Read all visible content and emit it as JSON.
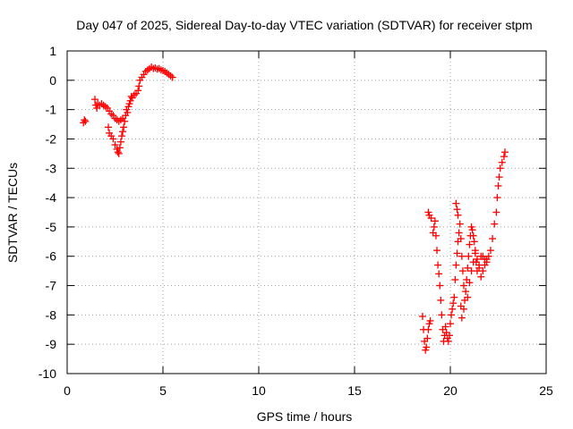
{
  "chart_data": {
    "type": "scatter",
    "title": "Day 047 of 2025, Sidereal Day-to-day VTEC variation (SDTVAR) for receiver stpm",
    "xlabel": "GPS time / hours",
    "ylabel": "SDTVAR / TECUs",
    "xlim": [
      0,
      25
    ],
    "ylim": [
      -10,
      1
    ],
    "xticks": [
      0,
      5,
      10,
      15,
      20,
      25
    ],
    "yticks": [
      1,
      0,
      -1,
      -2,
      -3,
      -4,
      -5,
      -6,
      -7,
      -8,
      -9,
      -10
    ],
    "xtick_labels": [
      "0",
      "5",
      "10",
      "15",
      "20",
      "25"
    ],
    "ytick_labels": [
      "1",
      "0",
      "-1",
      "-2",
      "-3",
      "-4",
      "-5",
      "-6",
      "-7",
      "-8",
      "-9",
      "-10"
    ],
    "grid": true,
    "marker": "plus",
    "color": "#ff0000",
    "series": [
      {
        "name": "SDTVAR",
        "points": [
          [
            0.85,
            -1.45
          ],
          [
            0.9,
            -1.35
          ],
          [
            0.95,
            -1.4
          ],
          [
            1.45,
            -0.65
          ],
          [
            1.5,
            -0.85
          ],
          [
            1.55,
            -0.95
          ],
          [
            1.6,
            -0.8
          ],
          [
            1.7,
            -0.85
          ],
          [
            1.8,
            -0.8
          ],
          [
            1.9,
            -0.85
          ],
          [
            2.0,
            -0.9
          ],
          [
            2.1,
            -0.95
          ],
          [
            2.2,
            -1.05
          ],
          [
            2.3,
            -1.15
          ],
          [
            2.4,
            -1.2
          ],
          [
            2.5,
            -1.3
          ],
          [
            2.6,
            -1.35
          ],
          [
            2.7,
            -1.4
          ],
          [
            2.8,
            -1.35
          ],
          [
            2.9,
            -1.3
          ],
          [
            2.15,
            -1.6
          ],
          [
            2.2,
            -1.8
          ],
          [
            2.3,
            -1.9
          ],
          [
            2.4,
            -2.0
          ],
          [
            2.5,
            -2.2
          ],
          [
            2.6,
            -2.35
          ],
          [
            2.65,
            -2.45
          ],
          [
            2.7,
            -2.5
          ],
          [
            2.75,
            -2.3
          ],
          [
            2.8,
            -2.1
          ],
          [
            2.85,
            -1.9
          ],
          [
            2.9,
            -1.75
          ],
          [
            2.95,
            -1.6
          ],
          [
            3.0,
            -1.4
          ],
          [
            3.05,
            -1.2
          ],
          [
            3.1,
            -1.0
          ],
          [
            3.15,
            -1.1
          ],
          [
            3.2,
            -0.9
          ],
          [
            3.25,
            -0.8
          ],
          [
            3.3,
            -0.7
          ],
          [
            3.35,
            -0.55
          ],
          [
            3.4,
            -0.6
          ],
          [
            3.5,
            -0.5
          ],
          [
            3.6,
            -0.45
          ],
          [
            3.7,
            -0.35
          ],
          [
            3.75,
            -0.2
          ],
          [
            3.8,
            0.0
          ],
          [
            3.9,
            0.1
          ],
          [
            4.0,
            0.2
          ],
          [
            4.1,
            0.3
          ],
          [
            4.2,
            0.35
          ],
          [
            4.3,
            0.4
          ],
          [
            4.4,
            0.45
          ],
          [
            4.5,
            0.4
          ],
          [
            4.6,
            0.42
          ],
          [
            4.7,
            0.38
          ],
          [
            4.8,
            0.4
          ],
          [
            4.9,
            0.35
          ],
          [
            5.0,
            0.33
          ],
          [
            5.1,
            0.3
          ],
          [
            5.2,
            0.25
          ],
          [
            5.3,
            0.2
          ],
          [
            5.4,
            0.15
          ],
          [
            5.5,
            0.1
          ],
          [
            18.55,
            -8.05
          ],
          [
            18.6,
            -8.5
          ],
          [
            18.65,
            -8.9
          ],
          [
            18.7,
            -9.2
          ],
          [
            18.75,
            -9.1
          ],
          [
            18.8,
            -8.8
          ],
          [
            18.85,
            -8.5
          ],
          [
            18.9,
            -8.3
          ],
          [
            18.95,
            -8.2
          ],
          [
            18.85,
            -4.5
          ],
          [
            18.9,
            -4.6
          ],
          [
            19.0,
            -4.7
          ],
          [
            19.1,
            -5.2
          ],
          [
            19.15,
            -5.0
          ],
          [
            19.2,
            -4.8
          ],
          [
            19.25,
            -5.3
          ],
          [
            19.3,
            -5.8
          ],
          [
            19.35,
            -6.3
          ],
          [
            19.4,
            -6.6
          ],
          [
            19.45,
            -7.0
          ],
          [
            19.5,
            -7.5
          ],
          [
            19.55,
            -8.0
          ],
          [
            19.6,
            -8.5
          ],
          [
            19.65,
            -8.9
          ],
          [
            19.7,
            -8.7
          ],
          [
            19.75,
            -8.4
          ],
          [
            19.8,
            -8.6
          ],
          [
            19.85,
            -8.8
          ],
          [
            19.9,
            -8.9
          ],
          [
            19.95,
            -8.7
          ],
          [
            20.0,
            -8.3
          ],
          [
            20.05,
            -8.0
          ],
          [
            20.1,
            -7.8
          ],
          [
            20.15,
            -7.6
          ],
          [
            20.2,
            -7.4
          ],
          [
            20.25,
            -6.8
          ],
          [
            20.3,
            -6.3
          ],
          [
            20.35,
            -5.9
          ],
          [
            20.4,
            -5.5
          ],
          [
            20.45,
            -5.2
          ],
          [
            20.5,
            -4.9
          ],
          [
            20.55,
            -5.4
          ],
          [
            20.6,
            -6.0
          ],
          [
            20.65,
            -6.5
          ],
          [
            20.7,
            -7.0
          ],
          [
            20.75,
            -7.5
          ],
          [
            20.8,
            -7.2
          ],
          [
            20.85,
            -6.8
          ],
          [
            20.9,
            -6.4
          ],
          [
            20.95,
            -6.0
          ],
          [
            21.0,
            -5.6
          ],
          [
            21.05,
            -5.3
          ],
          [
            21.1,
            -5.0
          ],
          [
            21.15,
            -5.1
          ],
          [
            21.2,
            -5.3
          ],
          [
            21.25,
            -5.5
          ],
          [
            21.3,
            -5.8
          ],
          [
            21.35,
            -6.2
          ],
          [
            21.4,
            -6.5
          ],
          [
            21.5,
            -6.3
          ],
          [
            21.6,
            -6.0
          ],
          [
            21.7,
            -6.0
          ],
          [
            21.8,
            -6.1
          ],
          [
            21.9,
            -6.2
          ],
          [
            22.0,
            -6.0
          ],
          [
            22.1,
            -5.8
          ],
          [
            22.2,
            -5.4
          ],
          [
            22.3,
            -4.9
          ],
          [
            22.4,
            -4.5
          ],
          [
            22.45,
            -4.0
          ],
          [
            22.5,
            -3.6
          ],
          [
            22.55,
            -3.3
          ],
          [
            22.6,
            -3.0
          ],
          [
            22.7,
            -2.8
          ],
          [
            22.8,
            -2.6
          ],
          [
            22.85,
            -2.45
          ],
          [
            20.3,
            -4.2
          ],
          [
            20.35,
            -4.4
          ],
          [
            20.4,
            -4.6
          ],
          [
            20.55,
            -7.7
          ],
          [
            20.6,
            -8.1
          ],
          [
            20.7,
            -7.8
          ],
          [
            20.9,
            -7.4
          ],
          [
            21.0,
            -6.9
          ],
          [
            21.1,
            -6.5
          ],
          [
            21.2,
            -6.2
          ],
          [
            21.3,
            -5.9
          ],
          [
            21.4,
            -6.1
          ],
          [
            21.5,
            -6.4
          ],
          [
            21.6,
            -6.7
          ],
          [
            21.7,
            -6.5
          ],
          [
            21.8,
            -6.3
          ],
          [
            21.9,
            -6.1
          ]
        ]
      }
    ]
  }
}
